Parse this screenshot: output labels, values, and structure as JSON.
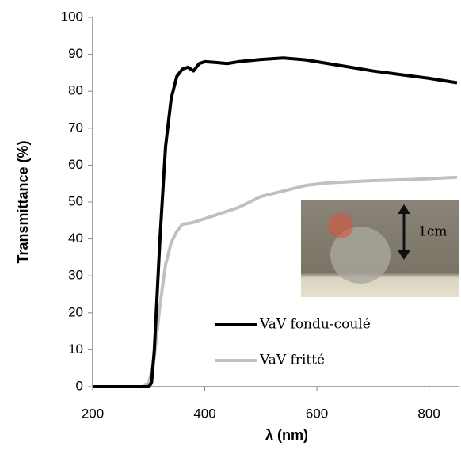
{
  "chart_data": {
    "type": "line",
    "x_label": "λ (nm)",
    "y_label": "Transmittance (%)",
    "x": [
      200,
      250,
      290,
      300,
      305,
      310,
      320,
      330,
      340,
      350,
      360,
      370,
      380,
      390,
      400,
      420,
      440,
      460,
      500,
      540,
      580,
      620,
      660,
      700,
      750,
      800,
      850
    ],
    "series": [
      {
        "name": "VaV fondu-coulé",
        "color": "#000000",
        "values": [
          0,
          0,
          0,
          0,
          1,
          10,
          40,
          65,
          78,
          84,
          86,
          86.5,
          85.5,
          87.5,
          88,
          87.8,
          87.5,
          88,
          88.6,
          89,
          88.5,
          87.5,
          86.5,
          85.5,
          84.5,
          83.5,
          82.3
        ]
      },
      {
        "name": "VaV fritté",
        "color": "#c0c0c0",
        "values": [
          0,
          0,
          0,
          1,
          4,
          8,
          22,
          33,
          39,
          42,
          44,
          44.2,
          44.5,
          45,
          45.5,
          46.5,
          47.5,
          48.5,
          51.5,
          53,
          54.5,
          55.2,
          55.5,
          55.8,
          56,
          56.3,
          56.7
        ]
      }
    ],
    "xlim": [
      200,
      850
    ],
    "xticks": [
      200,
      400,
      600,
      800
    ],
    "ylim": [
      0,
      100
    ],
    "yticks": [
      0,
      10,
      20,
      30,
      40,
      50,
      60,
      70,
      80,
      90,
      100
    ],
    "grid": false,
    "legend": "lower right",
    "annotation": "1cm"
  }
}
